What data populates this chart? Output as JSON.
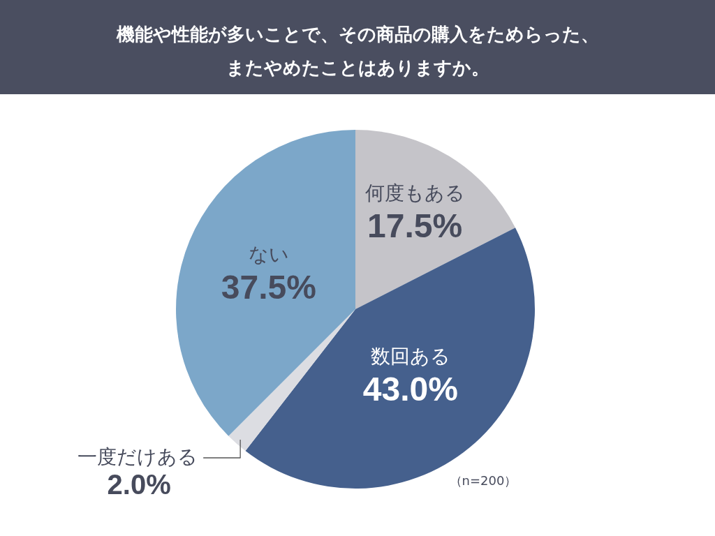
{
  "chart_data": {
    "type": "pie",
    "title": "機能や性能が多いことで、その商品の購入をためらった、またやめたことはありますか。",
    "categories": [
      "何度もある",
      "数回ある",
      "一度だけある",
      "ない"
    ],
    "values": [
      17.5,
      43.0,
      2.0,
      37.5
    ],
    "colors": [
      "#c5c4c9",
      "#45608d",
      "#dcdde2",
      "#7ca7c9"
    ],
    "value_labels": [
      "17.5%",
      "43.0%",
      "2.0%",
      "37.5%"
    ],
    "annotations": [
      "（n=200）"
    ]
  }
}
